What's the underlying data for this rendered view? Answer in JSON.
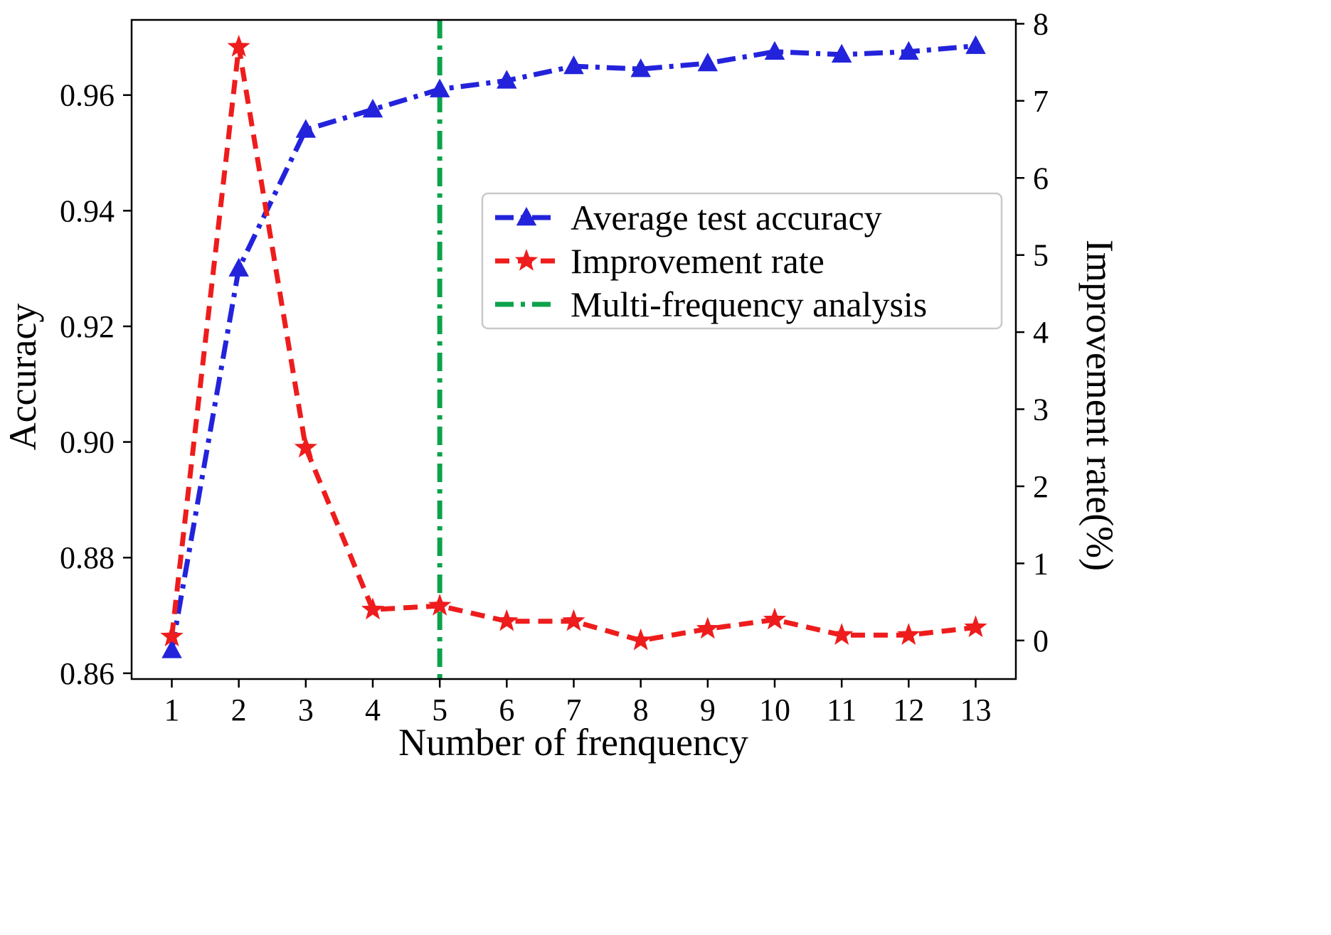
{
  "chart_data": {
    "type": "line",
    "title": "",
    "xlabel": "Number of frenquency",
    "ylabel_left": "Accuracy",
    "ylabel_right": "Improvement rate(%)",
    "x": [
      1,
      2,
      3,
      4,
      5,
      6,
      7,
      8,
      9,
      10,
      11,
      12,
      13
    ],
    "xlim": [
      0.4,
      13.6
    ],
    "ylim_left": [
      0.859,
      0.973
    ],
    "ylim_right": [
      -0.5,
      8.05
    ],
    "xticks": [
      1,
      2,
      3,
      4,
      5,
      6,
      7,
      8,
      9,
      10,
      11,
      12,
      13
    ],
    "yticks_left": [
      "0.86",
      "0.88",
      "0.90",
      "0.92",
      "0.94",
      "0.96"
    ],
    "yticks_right": [
      0,
      1,
      2,
      3,
      4,
      5,
      6,
      7,
      8
    ],
    "grid": false,
    "series": [
      {
        "name": "Average test accuracy",
        "axis": "left",
        "color": "#2323dc",
        "linestyle": "dashdot",
        "marker": "triangle",
        "values": [
          0.864,
          0.93,
          0.954,
          0.9575,
          0.961,
          0.9625,
          0.965,
          0.9645,
          0.9655,
          0.9675,
          0.967,
          0.9675,
          0.9685
        ]
      },
      {
        "name": "Improvement rate",
        "axis": "right",
        "color": "#ee1c1c",
        "linestyle": "dashed",
        "marker": "star",
        "values": [
          0.05,
          7.7,
          2.5,
          0.4,
          0.45,
          0.25,
          0.25,
          0.0,
          0.15,
          0.27,
          0.07,
          0.07,
          0.17
        ]
      }
    ],
    "vline": {
      "name": "Multi-frequency analysis",
      "x": 5,
      "color": "#0da24c",
      "linestyle": "dashdot"
    },
    "legend": {
      "position": "upper center-right",
      "entries": [
        "Average test accuracy",
        "Improvement rate",
        "Multi-frequency analysis"
      ]
    }
  }
}
